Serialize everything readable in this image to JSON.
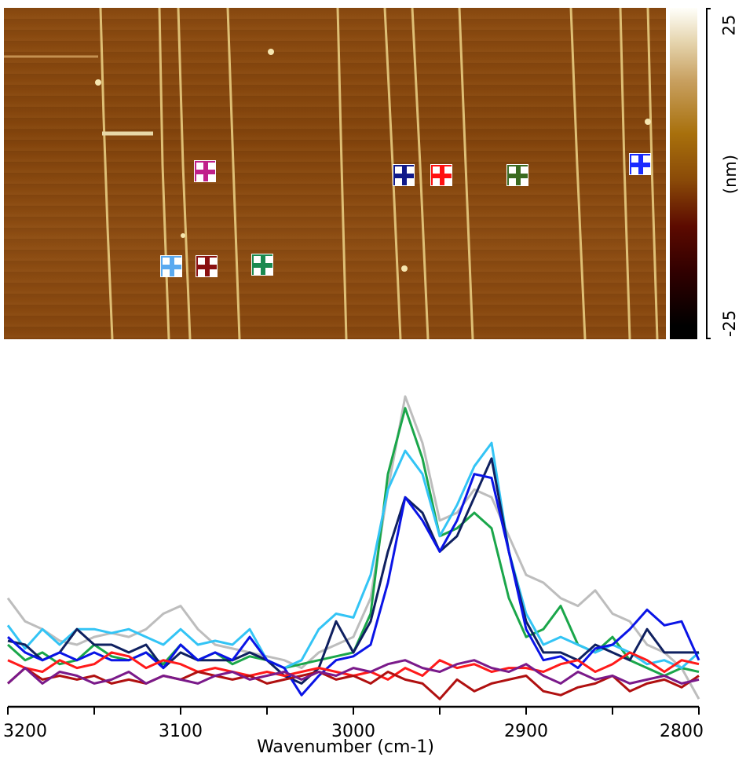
{
  "afm_image": {
    "colorbar": {
      "max_label": "25",
      "min_label": "-25",
      "unit_label": "(nm)",
      "colors": [
        "#fffffa",
        "#c8a060",
        "#a8700c",
        "#8a4a08",
        "#5c0a00",
        "#000000"
      ]
    },
    "markers": [
      {
        "name": "magenta",
        "color": "#c0208a"
      },
      {
        "name": "light-blue",
        "color": "#5aaaf0"
      },
      {
        "name": "dark-red",
        "color": "#8a1010"
      },
      {
        "name": "green",
        "color": "#1a8a50"
      },
      {
        "name": "navy",
        "color": "#101a8a"
      },
      {
        "name": "red",
        "color": "#ff1010"
      },
      {
        "name": "olive",
        "color": "#3a6a20"
      },
      {
        "name": "blue",
        "color": "#1a2aff"
      }
    ]
  },
  "chart_data": {
    "type": "line",
    "xlabel": "Wavenumber (cm-1)",
    "ylabel": "",
    "xlim": [
      3200,
      2800
    ],
    "x_reversed": true,
    "ylim": [
      0,
      4.1
    ],
    "y_units": "arbitrary (no y-axis shown)",
    "grid": false,
    "xticks": [
      3200,
      3100,
      3000,
      2900,
      2800
    ],
    "tick_labels": [
      "3200",
      "3100",
      "3000",
      "2900",
      "2800"
    ],
    "minor_ticks": [
      3150,
      3050,
      2950,
      2850
    ],
    "x": [
      3200,
      3190,
      3180,
      3170,
      3160,
      3150,
      3140,
      3130,
      3120,
      3110,
      3100,
      3090,
      3080,
      3070,
      3060,
      3050,
      3040,
      3030,
      3020,
      3010,
      3000,
      2990,
      2980,
      2970,
      2960,
      2950,
      2940,
      2930,
      2920,
      2910,
      2900,
      2890,
      2880,
      2870,
      2860,
      2850,
      2840,
      2830,
      2820,
      2810,
      2800
    ],
    "series": [
      {
        "color": "#bdbdbd",
        "values": [
          1.4,
          1.1,
          1.0,
          0.85,
          0.8,
          0.9,
          0.95,
          0.9,
          1.0,
          1.2,
          1.3,
          1.0,
          0.8,
          0.75,
          0.7,
          0.65,
          0.6,
          0.5,
          0.7,
          0.8,
          0.9,
          1.4,
          2.8,
          4.0,
          3.4,
          2.4,
          2.5,
          2.8,
          2.7,
          2.2,
          1.7,
          1.6,
          1.4,
          1.3,
          1.5,
          1.2,
          1.1,
          0.8,
          0.7,
          0.5,
          0.1
        ]
      },
      {
        "color": "#1aa64a",
        "values": [
          0.8,
          0.6,
          0.7,
          0.55,
          0.6,
          0.8,
          0.65,
          0.6,
          0.7,
          0.55,
          0.8,
          0.6,
          0.7,
          0.55,
          0.65,
          0.6,
          0.5,
          0.55,
          0.6,
          0.65,
          0.7,
          1.2,
          3.0,
          3.85,
          3.2,
          2.2,
          2.3,
          2.5,
          2.3,
          1.4,
          0.9,
          1.0,
          1.3,
          0.8,
          0.7,
          0.9,
          0.6,
          0.5,
          0.4,
          0.5,
          0.45
        ]
      },
      {
        "color": "#33c4f5",
        "values": [
          1.05,
          0.75,
          1.0,
          0.8,
          1.0,
          1.0,
          0.95,
          1.0,
          0.9,
          0.8,
          1.0,
          0.8,
          0.85,
          0.8,
          1.0,
          0.6,
          0.5,
          0.6,
          1.0,
          1.2,
          1.15,
          1.7,
          2.8,
          3.3,
          3.0,
          2.2,
          2.6,
          3.1,
          3.4,
          2.0,
          1.2,
          0.8,
          0.9,
          0.8,
          0.7,
          0.8,
          0.7,
          0.55,
          0.6,
          0.5,
          0.7
        ]
      },
      {
        "color": "#0f2060",
        "values": [
          0.85,
          0.8,
          0.6,
          0.7,
          1.0,
          0.8,
          0.8,
          0.7,
          0.8,
          0.5,
          0.7,
          0.6,
          0.6,
          0.6,
          0.7,
          0.6,
          0.4,
          0.3,
          0.5,
          1.1,
          0.7,
          1.1,
          2.0,
          2.7,
          2.5,
          2.0,
          2.2,
          2.7,
          3.2,
          2.0,
          1.1,
          0.7,
          0.7,
          0.6,
          0.8,
          0.7,
          0.6,
          1.0,
          0.7,
          0.7,
          0.7
        ]
      },
      {
        "color": "#0a14e6",
        "values": [
          0.9,
          0.7,
          0.6,
          0.7,
          0.6,
          0.7,
          0.6,
          0.6,
          0.7,
          0.5,
          0.8,
          0.6,
          0.7,
          0.6,
          0.9,
          0.6,
          0.5,
          0.15,
          0.4,
          0.6,
          0.65,
          0.8,
          1.6,
          2.7,
          2.4,
          2.0,
          2.4,
          3.0,
          2.95,
          2.0,
          1.0,
          0.6,
          0.65,
          0.5,
          0.75,
          0.8,
          1.0,
          1.25,
          1.05,
          1.1,
          0.6
        ]
      },
      {
        "color": "#ff1a1a",
        "values": [
          0.6,
          0.5,
          0.45,
          0.6,
          0.5,
          0.55,
          0.7,
          0.65,
          0.5,
          0.6,
          0.55,
          0.45,
          0.5,
          0.45,
          0.4,
          0.45,
          0.4,
          0.45,
          0.5,
          0.45,
          0.4,
          0.45,
          0.35,
          0.5,
          0.4,
          0.6,
          0.5,
          0.55,
          0.45,
          0.5,
          0.5,
          0.45,
          0.55,
          0.6,
          0.45,
          0.55,
          0.7,
          0.6,
          0.45,
          0.6,
          0.55
        ]
      },
      {
        "color": "#b01010",
        "values": [
          0.3,
          0.5,
          0.35,
          0.4,
          0.35,
          0.4,
          0.3,
          0.35,
          0.3,
          0.4,
          0.35,
          0.45,
          0.4,
          0.35,
          0.4,
          0.3,
          0.35,
          0.4,
          0.45,
          0.35,
          0.4,
          0.3,
          0.45,
          0.35,
          0.3,
          0.1,
          0.35,
          0.2,
          0.3,
          0.35,
          0.4,
          0.2,
          0.15,
          0.25,
          0.3,
          0.4,
          0.2,
          0.3,
          0.35,
          0.25,
          0.4
        ]
      },
      {
        "color": "#7a1a8a",
        "values": [
          0.3,
          0.5,
          0.3,
          0.45,
          0.4,
          0.3,
          0.35,
          0.45,
          0.3,
          0.4,
          0.35,
          0.3,
          0.4,
          0.45,
          0.35,
          0.4,
          0.45,
          0.35,
          0.45,
          0.4,
          0.5,
          0.45,
          0.55,
          0.6,
          0.5,
          0.45,
          0.55,
          0.6,
          0.5,
          0.45,
          0.55,
          0.4,
          0.3,
          0.45,
          0.35,
          0.4,
          0.3,
          0.35,
          0.4,
          0.3,
          0.35
        ]
      }
    ]
  }
}
